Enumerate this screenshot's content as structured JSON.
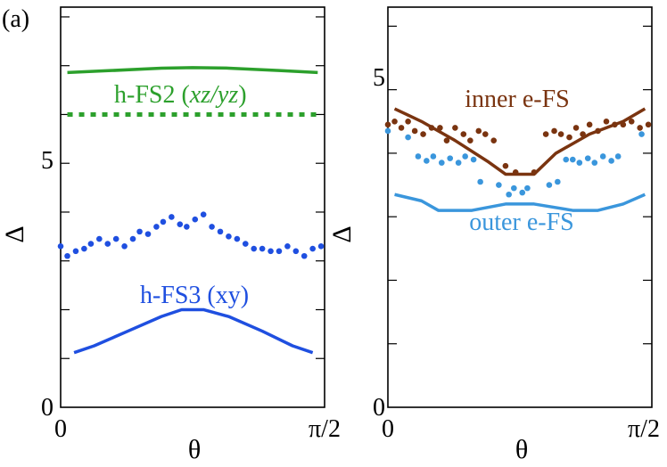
{
  "figure_tag": "(a)",
  "colors": {
    "green": "#2ca02c",
    "blue": "#1f4fe0",
    "light_blue": "#3a96dc",
    "brown": "#7a3410",
    "axis": "#000000"
  },
  "chart_data": [
    {
      "type": "line",
      "panel": "left",
      "xlabel": "θ",
      "ylabel": "Δ",
      "x_tick_labels": [
        "0",
        "π/2"
      ],
      "y_tick_labels": [
        "0",
        "5"
      ],
      "xlim": [
        0,
        1.5708
      ],
      "ylim": [
        0,
        8.2
      ],
      "series": [
        {
          "name": "h-FS2 solid",
          "label": "h-FS2",
          "label_italic": "xz/yz",
          "style": "solid",
          "color": "#2ca02c",
          "x": [
            0.04,
            0.3,
            0.6,
            0.785,
            1.0,
            1.3,
            1.53
          ],
          "y": [
            6.86,
            6.9,
            6.95,
            6.96,
            6.95,
            6.9,
            6.86
          ]
        },
        {
          "name": "h-FS2 dotted",
          "label": "",
          "style": "dotted",
          "color": "#2ca02c",
          "x": [
            0.04,
            1.53
          ],
          "y": [
            6.0,
            6.0
          ]
        },
        {
          "name": "h-FS3 solid",
          "label": "h-FS3 (xy)",
          "style": "solid",
          "color": "#1f4fe0",
          "x": [
            0.08,
            0.2,
            0.4,
            0.6,
            0.72,
            0.85,
            1.0,
            1.2,
            1.38,
            1.5
          ],
          "y": [
            1.12,
            1.26,
            1.56,
            1.86,
            2.0,
            2.0,
            1.86,
            1.56,
            1.26,
            1.12
          ]
        },
        {
          "name": "h-FS3 dots",
          "label": "",
          "style": "points",
          "color": "#1f4fe0",
          "x": [
            0.0,
            0.04,
            0.09,
            0.14,
            0.18,
            0.23,
            0.28,
            0.33,
            0.38,
            0.43,
            0.47,
            0.52,
            0.57,
            0.61,
            0.66,
            0.71,
            0.75,
            0.8,
            0.85,
            0.9,
            0.95,
            1.0,
            1.05,
            1.1,
            1.15,
            1.2,
            1.25,
            1.3,
            1.35,
            1.4,
            1.45,
            1.5,
            1.55
          ],
          "y": [
            3.3,
            3.1,
            3.2,
            3.25,
            3.35,
            3.45,
            3.35,
            3.45,
            3.3,
            3.45,
            3.6,
            3.55,
            3.7,
            3.8,
            3.9,
            3.75,
            3.7,
            3.85,
            3.95,
            3.7,
            3.6,
            3.5,
            3.45,
            3.35,
            3.25,
            3.25,
            3.2,
            3.2,
            3.3,
            3.2,
            3.1,
            3.25,
            3.3
          ]
        }
      ],
      "annotations": [
        "h-FS2 (xz/yz)",
        "h-FS3 (xy)"
      ]
    },
    {
      "type": "line",
      "panel": "right",
      "xlabel": "θ",
      "ylabel": "Δ",
      "x_tick_labels": [
        "0",
        "π/2"
      ],
      "y_tick_labels": [
        "0",
        "5"
      ],
      "xlim": [
        0,
        1.5708
      ],
      "ylim": [
        0,
        6.3
      ],
      "series": [
        {
          "name": "inner e-FS solid",
          "label": "inner e-FS",
          "style": "solid",
          "color": "#7a3410",
          "x": [
            0.04,
            0.2,
            0.4,
            0.6,
            0.7,
            0.87,
            1.0,
            1.2,
            1.4,
            1.53
          ],
          "y": [
            4.7,
            4.5,
            4.2,
            3.86,
            3.67,
            3.67,
            4.0,
            4.3,
            4.5,
            4.7
          ]
        },
        {
          "name": "inner e-FS dots",
          "label": "",
          "style": "points",
          "color": "#7a3410",
          "x": [
            0.0,
            0.04,
            0.08,
            0.12,
            0.16,
            0.21,
            0.26,
            0.31,
            0.35,
            0.4,
            0.45,
            0.49,
            0.54,
            0.58,
            0.63,
            0.7,
            0.76,
            0.87,
            0.94,
            0.99,
            1.03,
            1.08,
            1.12,
            1.16,
            1.2,
            1.25,
            1.3,
            1.35,
            1.4,
            1.45,
            1.5,
            1.55
          ],
          "y": [
            4.45,
            4.5,
            4.4,
            4.5,
            4.35,
            4.3,
            4.4,
            4.4,
            4.2,
            4.4,
            4.3,
            4.2,
            4.35,
            4.3,
            4.2,
            3.8,
            3.7,
            3.7,
            4.3,
            4.35,
            4.3,
            4.25,
            4.4,
            4.3,
            4.45,
            4.35,
            4.5,
            4.45,
            4.45,
            4.5,
            4.4,
            4.45
          ]
        },
        {
          "name": "outer e-FS solid",
          "label": "outer e-FS",
          "style": "solid",
          "color": "#3a96dc",
          "x": [
            0.04,
            0.2,
            0.3,
            0.5,
            0.7,
            0.87,
            1.1,
            1.25,
            1.4,
            1.53
          ],
          "y": [
            3.35,
            3.25,
            3.1,
            3.1,
            3.2,
            3.2,
            3.1,
            3.1,
            3.2,
            3.35
          ]
        },
        {
          "name": "outer e-FS dots",
          "label": "",
          "style": "points",
          "color": "#3a96dc",
          "x": [
            0.0,
            0.12,
            0.18,
            0.23,
            0.27,
            0.32,
            0.37,
            0.42,
            0.46,
            0.51,
            0.55,
            0.66,
            0.72,
            0.75,
            0.8,
            0.83,
            0.96,
            1.01,
            1.06,
            1.1,
            1.14,
            1.19,
            1.23,
            1.28,
            1.33,
            1.37,
            1.51
          ],
          "y": [
            4.35,
            4.25,
            3.95,
            3.88,
            3.95,
            3.85,
            3.92,
            3.85,
            3.95,
            3.9,
            3.55,
            3.5,
            3.35,
            3.45,
            3.38,
            3.45,
            3.5,
            3.55,
            3.9,
            3.9,
            3.85,
            3.92,
            3.85,
            3.95,
            3.88,
            3.95,
            4.3
          ]
        }
      ],
      "annotations": [
        "inner e-FS",
        "outer e-FS"
      ]
    }
  ]
}
